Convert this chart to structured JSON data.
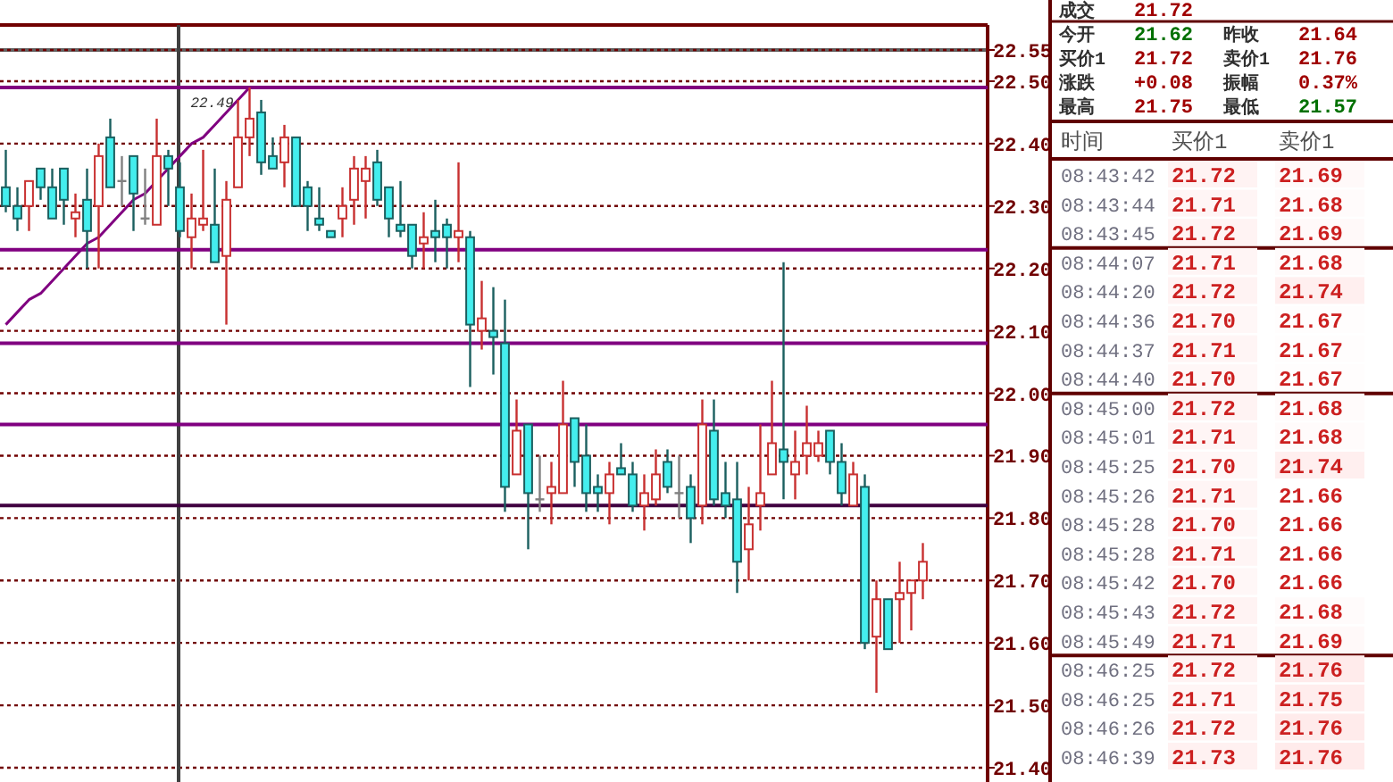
{
  "chart_data": [
    {
      "type": "candlestick",
      "categories": [
        null,
        null,
        null,
        null,
        null,
        null,
        null,
        null,
        null,
        null,
        null,
        null,
        null,
        null,
        null,
        null,
        null,
        null,
        null,
        null,
        null,
        null,
        null,
        null,
        null,
        null,
        null,
        null,
        null,
        null,
        null,
        null,
        null,
        null,
        null,
        null,
        null,
        null,
        null,
        null,
        null,
        null,
        null,
        null,
        null,
        null,
        null,
        null,
        null,
        null,
        null,
        null,
        null,
        null,
        null,
        null,
        null,
        null,
        null,
        null,
        null,
        null,
        null,
        null,
        null,
        null,
        null,
        null,
        null,
        null,
        null,
        null,
        null,
        null,
        null,
        null,
        null,
        null,
        null,
        null
      ],
      "ohlc": [
        [
          22.33,
          22.39,
          22.29,
          22.3
        ],
        [
          22.3,
          22.33,
          22.26,
          22.28
        ],
        [
          22.3,
          22.34,
          22.26,
          22.34
        ],
        [
          22.36,
          22.36,
          22.31,
          22.33
        ],
        [
          22.33,
          22.36,
          22.28,
          22.28
        ],
        [
          22.36,
          22.36,
          22.27,
          22.31
        ],
        [
          22.28,
          22.32,
          22.25,
          22.29
        ],
        [
          22.31,
          22.36,
          22.2,
          22.26
        ],
        [
          22.3,
          22.4,
          22.2,
          22.38
        ],
        [
          22.41,
          22.44,
          22.33,
          22.33
        ],
        [
          22.34,
          22.38,
          22.3,
          22.34
        ],
        [
          22.38,
          22.38,
          22.26,
          22.32
        ],
        [
          22.28,
          22.36,
          22.27,
          22.28
        ],
        [
          22.27,
          22.44,
          22.27,
          22.38
        ],
        [
          22.38,
          22.39,
          22.3,
          22.36
        ],
        [
          22.33,
          22.37,
          22.25,
          22.26
        ],
        [
          22.25,
          22.32,
          22.2,
          22.28
        ],
        [
          22.27,
          22.39,
          22.26,
          22.28
        ],
        [
          22.27,
          22.36,
          22.21,
          22.21
        ],
        [
          22.22,
          22.34,
          22.11,
          22.31
        ],
        [
          22.33,
          22.47,
          22.33,
          22.41
        ],
        [
          22.41,
          22.49,
          22.38,
          22.44
        ],
        [
          22.45,
          22.47,
          22.35,
          22.37
        ],
        [
          22.38,
          22.41,
          22.36,
          22.36
        ],
        [
          22.37,
          22.43,
          22.33,
          22.41
        ],
        [
          22.41,
          22.41,
          22.3,
          22.3
        ],
        [
          22.33,
          22.34,
          22.26,
          22.3
        ],
        [
          22.28,
          22.33,
          22.26,
          22.27
        ],
        [
          22.26,
          22.26,
          22.25,
          22.25
        ],
        [
          22.28,
          22.33,
          22.25,
          22.3
        ],
        [
          22.31,
          22.38,
          22.27,
          22.36
        ],
        [
          22.34,
          22.38,
          22.28,
          22.36
        ],
        [
          22.37,
          22.39,
          22.3,
          22.31
        ],
        [
          22.33,
          22.33,
          22.25,
          22.28
        ],
        [
          22.27,
          22.34,
          22.25,
          22.26
        ],
        [
          22.27,
          22.27,
          22.2,
          22.22
        ],
        [
          22.24,
          22.29,
          22.2,
          22.25
        ],
        [
          22.26,
          22.31,
          22.21,
          22.25
        ],
        [
          22.27,
          22.28,
          22.2,
          22.25
        ],
        [
          22.25,
          22.37,
          22.21,
          22.26
        ],
        [
          22.25,
          22.26,
          22.01,
          22.11
        ],
        [
          22.1,
          22.18,
          22.07,
          22.12
        ],
        [
          22.1,
          22.17,
          22.03,
          22.09
        ],
        [
          22.08,
          22.15,
          21.81,
          21.85
        ],
        [
          21.87,
          21.99,
          21.87,
          21.94
        ],
        [
          21.95,
          21.95,
          21.75,
          21.84
        ],
        [
          21.83,
          21.9,
          21.81,
          21.83
        ],
        [
          21.84,
          21.89,
          21.79,
          21.85
        ],
        [
          21.84,
          22.02,
          21.84,
          21.95
        ],
        [
          21.96,
          21.96,
          21.85,
          21.89
        ],
        [
          21.9,
          21.95,
          21.81,
          21.84
        ],
        [
          21.85,
          21.87,
          21.81,
          21.84
        ],
        [
          21.84,
          21.89,
          21.79,
          21.87
        ],
        [
          21.88,
          21.92,
          21.87,
          21.87
        ],
        [
          21.87,
          21.89,
          21.81,
          21.82
        ],
        [
          21.82,
          21.87,
          21.78,
          21.84
        ],
        [
          21.83,
          21.91,
          21.82,
          21.87
        ],
        [
          21.89,
          21.91,
          21.84,
          21.85
        ],
        [
          21.84,
          21.9,
          21.8,
          21.84
        ],
        [
          21.85,
          21.87,
          21.76,
          21.8
        ],
        [
          21.82,
          21.99,
          21.79,
          21.95
        ],
        [
          21.94,
          21.99,
          21.82,
          21.83
        ],
        [
          21.84,
          21.89,
          21.8,
          21.82
        ],
        [
          21.83,
          21.89,
          21.68,
          21.73
        ],
        [
          21.75,
          21.85,
          21.7,
          21.79
        ],
        [
          21.82,
          21.95,
          21.78,
          21.84
        ],
        [
          21.87,
          22.02,
          21.87,
          21.92
        ],
        [
          21.91,
          22.21,
          21.83,
          21.89
        ],
        [
          21.87,
          21.94,
          21.83,
          21.89
        ],
        [
          21.9,
          21.98,
          21.87,
          21.92
        ],
        [
          21.9,
          21.94,
          21.89,
          21.92
        ],
        [
          21.94,
          21.94,
          21.87,
          21.89
        ],
        [
          21.89,
          21.92,
          21.82,
          21.84
        ],
        [
          21.82,
          21.89,
          21.82,
          21.87
        ],
        [
          21.85,
          21.87,
          21.59,
          21.6
        ],
        [
          21.61,
          21.7,
          21.52,
          21.67
        ],
        [
          21.67,
          21.67,
          21.59,
          21.59
        ],
        [
          21.67,
          21.73,
          21.6,
          21.68
        ],
        [
          21.68,
          21.7,
          21.62,
          21.7
        ],
        [
          21.7,
          21.76,
          21.67,
          21.73
        ]
      ],
      "colors": [
        "#44eeee",
        "#44eeee",
        "#c83030",
        "#44eeee",
        "#44eeee",
        "#44eeee",
        "#c83030",
        "#44eeee",
        "#c83030",
        "#44eeee",
        "#808080",
        "#44eeee",
        "#808080",
        "#c83030",
        "#44eeee",
        "#44eeee",
        "#c83030",
        "#c83030",
        "#44eeee",
        "#c83030",
        "#c83030",
        "#c83030",
        "#44eeee",
        "#44eeee",
        "#c83030",
        "#44eeee",
        "#44eeee",
        "#44eeee",
        "#44eeee",
        "#c83030",
        "#c83030",
        "#c83030",
        "#44eeee",
        "#44eeee",
        "#44eeee",
        "#44eeee",
        "#c83030",
        "#44eeee",
        "#44eeee",
        "#c83030",
        "#44eeee",
        "#c83030",
        "#44eeee",
        "#44eeee",
        "#c83030",
        "#44eeee",
        "#808080",
        "#c83030",
        "#c83030",
        "#44eeee",
        "#44eeee",
        "#44eeee",
        "#c83030",
        "#44eeee",
        "#44eeee",
        "#c83030",
        "#c83030",
        "#44eeee",
        "#808080",
        "#44eeee",
        "#c83030",
        "#44eeee",
        "#44eeee",
        "#44eeee",
        "#c83030",
        "#c83030",
        "#c83030",
        "#44eeee",
        "#c83030",
        "#c83030",
        "#c83030",
        "#44eeee",
        "#44eeee",
        "#c83030",
        "#44eeee",
        "#c83030",
        "#44eeee",
        "#c83030",
        "#c83030",
        "#c83030"
      ],
      "series": [
        {
          "type": "line",
          "values": [
            22.11,
            22.13,
            22.15,
            22.16,
            22.18,
            22.2,
            22.22,
            22.24,
            22.25,
            22.27,
            22.29,
            22.31,
            22.32,
            22.34,
            22.36,
            22.38,
            22.4,
            22.41,
            22.43,
            22.45,
            22.47,
            22.49,
            null,
            null,
            null,
            null,
            null,
            null,
            null,
            null,
            null,
            null,
            null,
            null,
            null,
            null,
            null,
            null,
            null,
            null,
            null,
            null,
            null,
            null,
            null,
            null,
            null,
            null,
            null,
            null,
            null,
            null,
            null,
            null,
            null,
            null,
            null,
            null,
            null,
            null,
            null,
            null,
            null,
            null,
            null,
            null,
            null,
            null,
            null,
            null,
            null,
            null,
            null,
            null,
            null,
            null,
            null,
            null,
            null,
            null
          ],
          "color": "#800080"
        }
      ],
      "annotations": [
        {
          "text": "22.49",
          "y": 22.49
        }
      ],
      "ylim": [
        21.4,
        22.55
      ],
      "yticks": [
        {
          "value": 21.4,
          "label": "21.40"
        },
        {
          "value": 21.5,
          "label": "21.50"
        },
        {
          "value": 21.6,
          "label": "21.60"
        },
        {
          "value": 21.7,
          "label": "21.70"
        },
        {
          "value": 21.8,
          "label": "21.80"
        },
        {
          "value": 21.9,
          "label": "21.90"
        },
        {
          "value": 22.0,
          "label": "22.00"
        },
        {
          "value": 22.1,
          "label": "22.10"
        },
        {
          "value": 22.2,
          "label": "22.20"
        },
        {
          "value": 22.3,
          "label": "22.30"
        },
        {
          "value": 22.4,
          "label": "22.40"
        },
        {
          "value": 22.5,
          "label": "22.50"
        },
        {
          "value": 22.55,
          "label": "22.55"
        }
      ],
      "grid": "y",
      "tick_labels": "y",
      "ref_lines": [
        {
          "axis": "y",
          "value": 22.49,
          "color": "#800080"
        },
        {
          "axis": "y",
          "value": 22.23,
          "color": "#800080"
        },
        {
          "axis": "y",
          "value": 22.08,
          "color": "#800080"
        },
        {
          "axis": "y",
          "value": 21.95,
          "color": "#800080"
        },
        {
          "axis": "y",
          "value": 21.82,
          "color": "#400040"
        }
      ]
    },
    {
      "type": "other",
      "annotations": [
        "成交",
        "21.72",
        "今开",
        "21.62",
        "昨收",
        "21.64",
        "买价1",
        "21.72",
        "卖价1",
        "21.76",
        "涨跌",
        "+0.08",
        "振幅",
        "0.37%",
        "最高",
        "21.75",
        "最低",
        "21.57"
      ]
    },
    {
      "type": "heatmap",
      "data_labels": true,
      "ylabel": "时间",
      "categories": [
        "买价1",
        "卖价1"
      ],
      "y_categories": [
        "08:43:42",
        "08:43:44",
        "08:43:45",
        "08:44:07",
        "08:44:20",
        "08:44:36",
        "08:44:37",
        "08:44:40",
        "08:45:00",
        "08:45:01",
        "08:45:25",
        "08:45:26",
        "08:45:28",
        "08:45:28",
        "08:45:42",
        "08:45:43",
        "08:45:49",
        "08:46:25",
        "08:46:25",
        "08:46:26",
        "08:46:39"
      ],
      "cells": [
        [
          21.72,
          21.69
        ],
        [
          21.71,
          21.68
        ],
        [
          21.72,
          21.69
        ],
        [
          21.71,
          21.68
        ],
        [
          21.72,
          21.74
        ],
        [
          21.7,
          21.67
        ],
        [
          21.71,
          21.67
        ],
        [
          21.7,
          21.67
        ],
        [
          21.72,
          21.68
        ],
        [
          21.71,
          21.68
        ],
        [
          21.7,
          21.74
        ],
        [
          21.71,
          21.66
        ],
        [
          21.7,
          21.66
        ],
        [
          21.71,
          21.66
        ],
        [
          21.7,
          21.66
        ],
        [
          21.72,
          21.68
        ],
        [
          21.71,
          21.69
        ],
        [
          21.72,
          21.76
        ],
        [
          21.71,
          21.75
        ],
        [
          21.72,
          21.76
        ],
        [
          21.73,
          21.76
        ]
      ],
      "cell_labels": [
        [
          "21.72",
          "21.69"
        ],
        [
          "21.71",
          "21.68"
        ],
        [
          "21.72",
          "21.69"
        ],
        [
          "21.71",
          "21.68"
        ],
        [
          "21.72",
          "21.74"
        ],
        [
          "21.70",
          "21.67"
        ],
        [
          "21.71",
          "21.67"
        ],
        [
          "21.70",
          "21.67"
        ],
        [
          "21.72",
          "21.68"
        ],
        [
          "21.71",
          "21.68"
        ],
        [
          "21.70",
          "21.74"
        ],
        [
          "21.71",
          "21.66"
        ],
        [
          "21.70",
          "21.66"
        ],
        [
          "21.71",
          "21.66"
        ],
        [
          "21.70",
          "21.66"
        ],
        [
          "21.72",
          "21.68"
        ],
        [
          "21.71",
          "21.69"
        ],
        [
          "21.72",
          "21.76"
        ],
        [
          "21.71",
          "21.75"
        ],
        [
          "21.72",
          "21.76"
        ],
        [
          "21.73",
          "21.76"
        ]
      ]
    }
  ]
}
